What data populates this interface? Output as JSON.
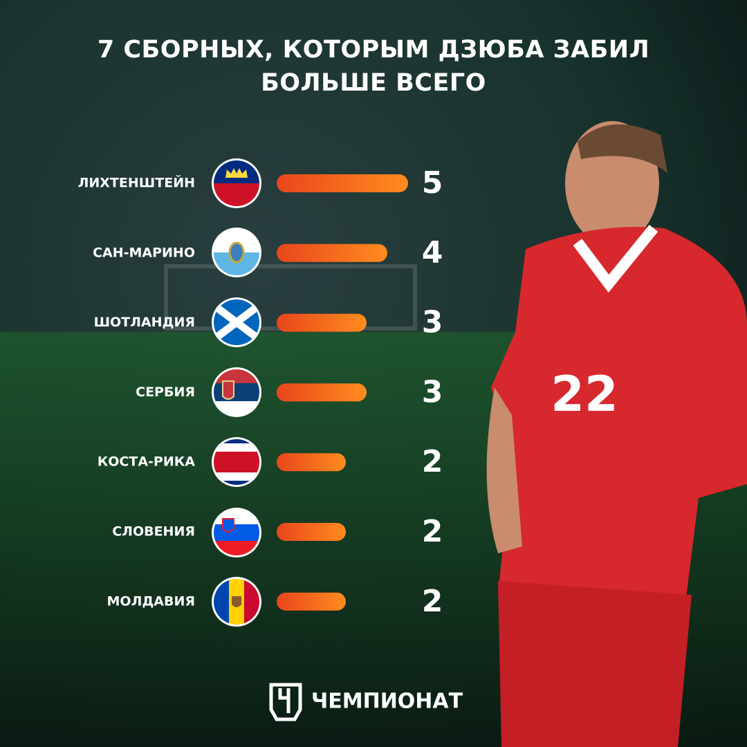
{
  "chart_data": {
    "type": "hbar",
    "title": "7 СБОРНЫХ, КОТОРЫМ ДЗЮБА ЗАБИЛ БОЛЬШЕ ВСЕГО",
    "categories": [
      "ЛИХТЕНШТЕЙН",
      "САН-МАРИНО",
      "ШОТЛАНДИЯ",
      "СЕРБИЯ",
      "КОСТА-РИКА",
      "СЛОВЕНИЯ",
      "МОЛДАВИЯ"
    ],
    "values": [
      5,
      4,
      3,
      3,
      2,
      2,
      2
    ],
    "color": "#f26a1b"
  },
  "player_number": "22",
  "brand": "ЧЕМПИОНАТ"
}
